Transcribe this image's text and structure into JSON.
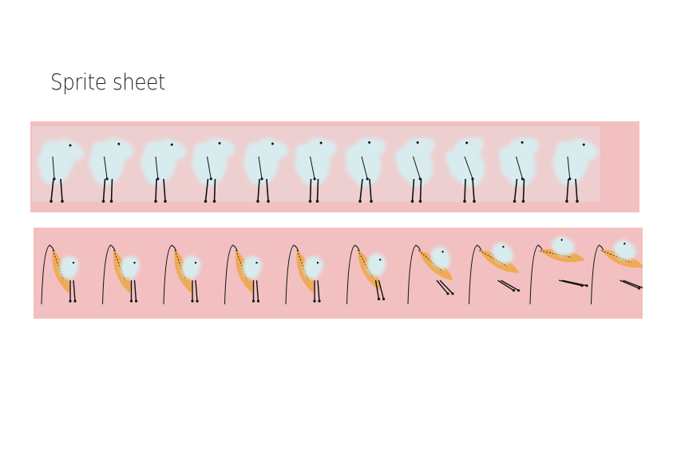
{
  "page_title": "Sprite sheet",
  "colors": {
    "background": "#ffffff",
    "strip_bg": "#f2c0c0",
    "sheep_body": "#d8ecef",
    "wing": "#eeaa55",
    "ink": "#111111"
  },
  "strips": [
    {
      "name": "walk-cycle-strip",
      "frame_count": 11
    },
    {
      "name": "hang-glider-strip",
      "frame_count": 10
    }
  ]
}
